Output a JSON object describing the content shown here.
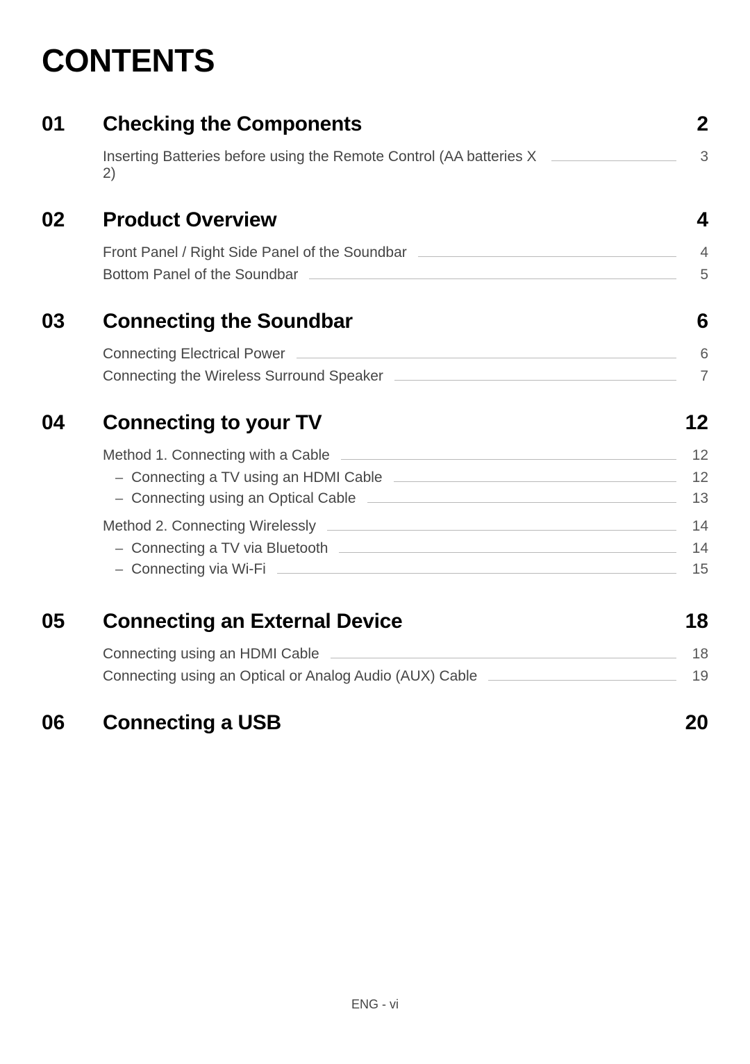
{
  "title": "CONTENTS",
  "footer": "ENG - vi",
  "sections": [
    {
      "number": "01",
      "title": "Checking the Components",
      "page": "2",
      "items": [
        {
          "label": "Inserting Batteries before using the Remote Control (AA batteries X 2)",
          "page": "3"
        }
      ]
    },
    {
      "number": "02",
      "title": "Product Overview",
      "page": "4",
      "items": [
        {
          "label": "Front Panel / Right Side Panel of the Soundbar",
          "page": "4"
        },
        {
          "label": "Bottom Panel of the Soundbar",
          "page": "5"
        }
      ]
    },
    {
      "number": "03",
      "title": "Connecting the Soundbar",
      "page": "6",
      "items": [
        {
          "label": "Connecting Electrical Power",
          "page": "6"
        },
        {
          "label": "Connecting the Wireless Surround Speaker",
          "page": "7"
        }
      ]
    },
    {
      "number": "04",
      "title": "Connecting to your TV",
      "page": "12",
      "groups": [
        {
          "label": "Method 1. Connecting with a Cable",
          "page": "12",
          "children": [
            {
              "label": "Connecting a TV using an HDMI Cable",
              "page": "12"
            },
            {
              "label": "Connecting using an Optical Cable",
              "page": "13"
            }
          ]
        },
        {
          "label": "Method 2. Connecting Wirelessly",
          "page": "14",
          "children": [
            {
              "label": "Connecting a TV via Bluetooth",
              "page": "14"
            },
            {
              "label": "Connecting via Wi-Fi",
              "page": "15"
            }
          ]
        }
      ]
    },
    {
      "number": "05",
      "title": "Connecting an External Device",
      "page": "18",
      "items": [
        {
          "label": "Connecting using an HDMI Cable",
          "page": "18"
        },
        {
          "label": "Connecting using an Optical or Analog Audio (AUX) Cable",
          "page": "19"
        }
      ]
    },
    {
      "number": "06",
      "title": "Connecting a USB",
      "page": "20"
    }
  ]
}
